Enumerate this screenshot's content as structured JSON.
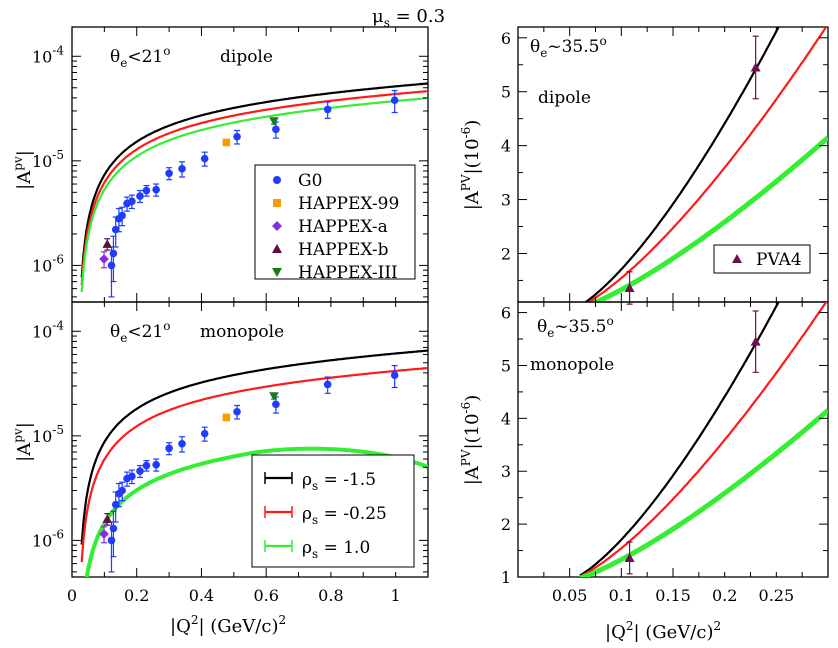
{
  "top_label": {
    "text": "μ",
    "sub": "s",
    "rest": " = 0.3"
  },
  "colors": {
    "g0": "#1f3cff",
    "happex99": "#ff9a00",
    "happexa": "#8a2be2",
    "happexb": "#5a1040",
    "happex3": "#1a7a1a",
    "pva4": "#6b1050",
    "curve_black": "#000000",
    "curve_red": "#ff1a1a",
    "curve_green": "#33ee33"
  },
  "chart_data": [
    {
      "id": "left-top",
      "type": "scatter+line",
      "annotation": {
        "theta": "θ",
        "sub": "e",
        "rest": "<21",
        "sup": "o",
        "model": "dipole"
      },
      "ylabel": {
        "base": "|A",
        "sup": "pv",
        "end": "|"
      },
      "xlim": [
        0,
        1.1
      ],
      "ylim_log10": [
        -6.35,
        -3.72
      ],
      "yscale": "log",
      "yticks": [
        {
          "base": "10",
          "exp": "-6",
          "v": -6
        },
        {
          "base": "10",
          "exp": "-5",
          "v": -5
        },
        {
          "base": "10",
          "exp": "-4",
          "v": -4
        }
      ],
      "legend": [
        {
          "label": "G0",
          "marker": "circle",
          "color": "#1f3cff"
        },
        {
          "label": "HAPPEX-99",
          "marker": "square",
          "color": "#ff9a00"
        },
        {
          "label": "HAPPEX-a",
          "marker": "diamond",
          "color": "#8a2be2"
        },
        {
          "label": "HAPPEX-b",
          "marker": "triangle-up",
          "color": "#5a1040"
        },
        {
          "label": "HAPPEX-III",
          "marker": "triangle-down",
          "color": "#1a7a1a"
        }
      ],
      "curves": [
        {
          "name": "rho_s = -1.5",
          "color": "#000000",
          "A": 5.8e-05,
          "shape": "sat"
        },
        {
          "name": "rho_s = -0.25",
          "color": "#ff1a1a",
          "A": 4.9e-05,
          "shape": "sat"
        },
        {
          "name": "rho_s = 1.0",
          "color": "#33ee33",
          "A": 4.2e-05,
          "shape": "sat"
        }
      ]
    },
    {
      "id": "left-bottom",
      "type": "scatter+line",
      "annotation": {
        "theta": "θ",
        "sub": "e",
        "rest": "<21",
        "sup": "o",
        "model": "monopole"
      },
      "ylabel": {
        "base": "|A",
        "sup": "pv",
        "end": "|"
      },
      "xlabel": {
        "base": "|Q",
        "sup": "2",
        "rest": "| (GeV/c)",
        "sup2": "2"
      },
      "xlim": [
        0,
        1.1
      ],
      "ylim_log10": [
        -6.35,
        -3.72
      ],
      "yscale": "log",
      "xticks": [
        0,
        0.2,
        0.4,
        0.6,
        0.8,
        1
      ],
      "xticklabels": [
        "0",
        "0.2",
        "0.4",
        "0.6",
        "0.8",
        "1"
      ],
      "yticks": [
        {
          "base": "10",
          "exp": "-6",
          "v": -6
        },
        {
          "base": "10",
          "exp": "-5",
          "v": -5
        },
        {
          "base": "10",
          "exp": "-4",
          "v": -4
        }
      ],
      "legend": [
        {
          "label": "ρ",
          "sub": "s",
          "rest": " = -1.5",
          "color": "#000000"
        },
        {
          "label": "ρ",
          "sub": "s",
          "rest": " = -0.25",
          "color": "#ff1a1a"
        },
        {
          "label": "ρ",
          "sub": "s",
          "rest": " = 1.0",
          "color": "#33ee33"
        }
      ],
      "curves": [
        {
          "name": "rho_s = -1.5",
          "color": "#000000",
          "A": 6.9e-05,
          "shape": "sat"
        },
        {
          "name": "rho_s = -0.25",
          "color": "#ff1a1a",
          "A": 4.7e-05,
          "shape": "sat"
        },
        {
          "name": "rho_s = 1.0",
          "color": "#33ee33",
          "A": 1.15e-05,
          "shape": "turn"
        }
      ]
    },
    {
      "id": "right-top",
      "type": "scatter+line",
      "annotation": {
        "theta": "θ",
        "sub": "e",
        "rest": "~35.5",
        "sup": "o",
        "model": "dipole"
      },
      "ylabel": {
        "base": "|A",
        "sup": "PV",
        "end": "|(10",
        "sup2": "-6",
        "close": ")"
      },
      "xlim": [
        0,
        0.3
      ],
      "ylim": [
        1.1,
        6.2
      ],
      "yticks": [
        2,
        3,
        4,
        5,
        6
      ],
      "legend": [
        {
          "label": "PVA4",
          "marker": "triangle-up",
          "color": "#6b1050"
        }
      ],
      "curves": [
        {
          "name": "rho_s = -1.5",
          "color": "#000000",
          "k": 118,
          "p": 1.42
        },
        {
          "name": "rho_s = -0.25",
          "color": "#ff1a1a",
          "k": 84,
          "p": 1.38
        },
        {
          "name": "rho_s = 1.0",
          "color": "#33ee33",
          "k": 47,
          "p": 1.32
        }
      ]
    },
    {
      "id": "right-bottom",
      "type": "scatter+line",
      "annotation": {
        "theta": "θ",
        "sub": "e",
        "rest": "~35.5",
        "sup": "o",
        "model": "monopole"
      },
      "ylabel": {
        "base": "|A",
        "sup": "PV",
        "end": "|(10",
        "sup2": "-6",
        "close": ")"
      },
      "xlabel": {
        "base": "|Q",
        "sup": "2",
        "rest": "| (GeV/c)",
        "sup2": "2"
      },
      "xlim": [
        0,
        0.3
      ],
      "ylim": [
        1,
        6.2
      ],
      "xticks": [
        0.05,
        0.1,
        0.15,
        0.2,
        0.25
      ],
      "xticklabels": [
        "0.05",
        "0.1",
        "0.15",
        "0.2",
        "0.25"
      ],
      "yticks": [
        1,
        2,
        3,
        4,
        5,
        6
      ],
      "curves": [
        {
          "name": "rho_s = -1.5",
          "color": "#000000",
          "k": 118,
          "p": 1.42
        },
        {
          "name": "rho_s = -0.25",
          "color": "#ff1a1a",
          "k": 84,
          "p": 1.38
        },
        {
          "name": "rho_s = 1.0",
          "color": "#33ee33",
          "k": 47,
          "p": 1.32
        }
      ]
    }
  ],
  "datasets": {
    "g0": [
      [
        0.122,
        1e-06,
        5e-07
      ],
      [
        0.128,
        1.3e-06,
        6e-07
      ],
      [
        0.135,
        2.2e-06,
        7e-07
      ],
      [
        0.145,
        2.8e-06,
        7e-07
      ],
      [
        0.155,
        3e-06,
        6e-07
      ],
      [
        0.17,
        3.9e-06,
        6e-07
      ],
      [
        0.185,
        4.1e-06,
        6e-07
      ],
      [
        0.21,
        4.6e-06,
        6e-07
      ],
      [
        0.23,
        5.2e-06,
        6e-07
      ],
      [
        0.26,
        5.3e-06,
        7e-07
      ],
      [
        0.3,
        7.6e-06,
        1e-06
      ],
      [
        0.34,
        8.4e-06,
        1.4e-06
      ],
      [
        0.41,
        1.05e-05,
        1.6e-06
      ],
      [
        0.51,
        1.7e-05,
        2.5e-06
      ],
      [
        0.63,
        2e-05,
        3.5e-06
      ],
      [
        0.79,
        3.1e-05,
        5.5e-06
      ],
      [
        0.997,
        3.8e-05,
        9e-06
      ]
    ],
    "happex99": [
      [
        0.477,
        1.5e-05,
        1e-06
      ]
    ],
    "happexa": [
      [
        0.099,
        1.15e-06,
        2e-07
      ]
    ],
    "happexb": [
      [
        0.109,
        1.6e-06,
        2e-07
      ]
    ],
    "happex3": [
      [
        0.624,
        2.4e-05,
        1.5e-06
      ]
    ],
    "pva4": [
      [
        0.108,
        1.36,
        0.3
      ],
      [
        0.23,
        5.45,
        0.58
      ]
    ]
  }
}
